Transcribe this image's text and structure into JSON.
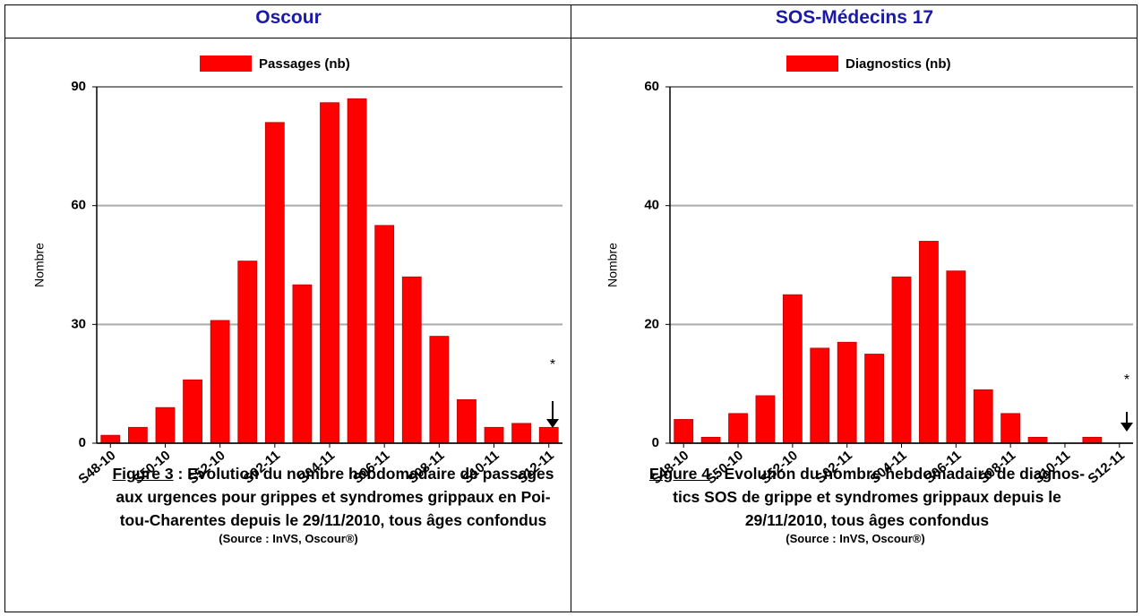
{
  "chart_data": [
    {
      "type": "bar",
      "title": "Oscour",
      "title_color": "#1a1aa6",
      "ylabel": "Nombre",
      "categories": [
        "S48-10",
        null,
        "S50-10",
        null,
        "S52-10",
        null,
        "S02-11",
        null,
        "S04-11",
        null,
        "S06-11",
        null,
        "S08-11",
        null,
        "S10-11",
        null,
        "S12-11"
      ],
      "series": [
        {
          "name": "Passages (nb)",
          "color": "#ff0000",
          "values": [
            2,
            4,
            9,
            16,
            31,
            46,
            81,
            40,
            86,
            87,
            55,
            42,
            27,
            11,
            4,
            5,
            4
          ]
        }
      ],
      "ylim": [
        0,
        90
      ],
      "yticks": [
        0,
        30,
        60,
        90
      ],
      "grid": true,
      "legend": "top",
      "annotation": "*",
      "figure": "Figure 3",
      "caption_lines": [
        ": Evolution du nombre hebdomadaire de passages",
        "aux urgences pour grippes et syndromes grippaux en Poi-",
        "tou-Charentes depuis le 29/11/2010, tous âges confondus"
      ],
      "source": "(Source : InVS, Oscour®)"
    },
    {
      "type": "bar",
      "title": "SOS-Médecins 17",
      "title_color": "#1a1aa6",
      "ylabel": "Nombre",
      "categories": [
        "S48-10",
        null,
        "S50-10",
        null,
        "S52-10",
        null,
        "S02-11",
        null,
        "S04-11",
        null,
        "S06-11",
        null,
        "S08-11",
        null,
        "S10-11",
        null,
        "S12-11"
      ],
      "series": [
        {
          "name": "Diagnostics (nb)",
          "color": "#ff0000",
          "values": [
            4,
            1,
            5,
            8,
            25,
            16,
            17,
            15,
            28,
            34,
            29,
            9,
            5,
            1,
            0,
            1,
            0
          ]
        }
      ],
      "ylim": [
        0,
        60
      ],
      "yticks": [
        0,
        20,
        40,
        60
      ],
      "grid": true,
      "legend": "top",
      "annotation": "*",
      "figure": "Figure 4",
      "caption_lines": [
        ": Evolution du nombre hebdomadaire de diagnos-",
        "tics SOS de grippe et syndromes grippaux depuis le",
        "29/11/2010, tous âges confondus"
      ],
      "source": "(Source : InVS, Oscour®)"
    }
  ]
}
